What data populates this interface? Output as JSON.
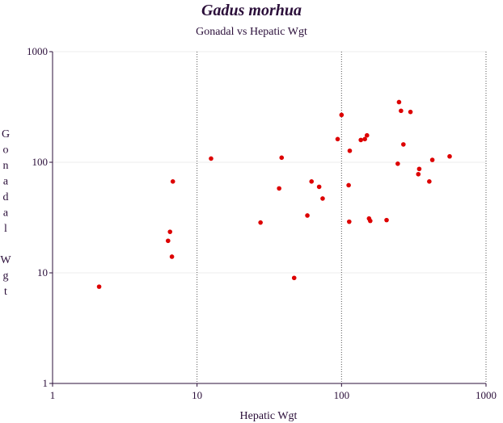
{
  "chart_data": {
    "type": "scatter",
    "title": "Gadus morhua",
    "subtitle": "Gonadal vs Hepatic Wgt",
    "xlabel": "Hepatic Wgt",
    "ylabel": "Gonadal Wgt",
    "xscale": "log",
    "yscale": "log",
    "xlim": [
      1,
      1000
    ],
    "ylim": [
      1,
      1000
    ],
    "x_ticks": [
      {
        "value": 1,
        "label": "1"
      },
      {
        "value": 10,
        "label": "10"
      },
      {
        "value": 100,
        "label": "100"
      },
      {
        "value": 1000,
        "label": "1000"
      }
    ],
    "y_ticks": [
      {
        "value": 1,
        "label": "1"
      },
      {
        "value": 10,
        "label": "10"
      },
      {
        "value": 100,
        "label": "100"
      },
      {
        "value": 1000,
        "label": "1000"
      }
    ],
    "grid": {
      "x_major": "dotted",
      "y_major": "faint"
    },
    "colors": {
      "points": "#dd0000",
      "axes": "#2b0f3a",
      "grid_x": "#555555",
      "grid_y": "#eeeeee"
    },
    "points": [
      {
        "x": 2.1,
        "y": 7.5
      },
      {
        "x": 6.3,
        "y": 19.5
      },
      {
        "x": 6.5,
        "y": 23.5
      },
      {
        "x": 6.7,
        "y": 14
      },
      {
        "x": 6.8,
        "y": 67
      },
      {
        "x": 12.5,
        "y": 108
      },
      {
        "x": 27.5,
        "y": 28.5
      },
      {
        "x": 37,
        "y": 58
      },
      {
        "x": 38.5,
        "y": 110
      },
      {
        "x": 47,
        "y": 9
      },
      {
        "x": 58,
        "y": 33
      },
      {
        "x": 62,
        "y": 67
      },
      {
        "x": 70,
        "y": 60
      },
      {
        "x": 74,
        "y": 47
      },
      {
        "x": 94,
        "y": 162
      },
      {
        "x": 100,
        "y": 268
      },
      {
        "x": 112,
        "y": 62
      },
      {
        "x": 113,
        "y": 29
      },
      {
        "x": 114,
        "y": 127
      },
      {
        "x": 136,
        "y": 159
      },
      {
        "x": 145,
        "y": 162
      },
      {
        "x": 150,
        "y": 175
      },
      {
        "x": 155,
        "y": 31
      },
      {
        "x": 158,
        "y": 29.5
      },
      {
        "x": 205,
        "y": 30
      },
      {
        "x": 245,
        "y": 97
      },
      {
        "x": 250,
        "y": 350
      },
      {
        "x": 258,
        "y": 292
      },
      {
        "x": 268,
        "y": 145
      },
      {
        "x": 300,
        "y": 285
      },
      {
        "x": 340,
        "y": 78
      },
      {
        "x": 345,
        "y": 87
      },
      {
        "x": 405,
        "y": 67
      },
      {
        "x": 425,
        "y": 105
      },
      {
        "x": 560,
        "y": 113
      }
    ]
  }
}
